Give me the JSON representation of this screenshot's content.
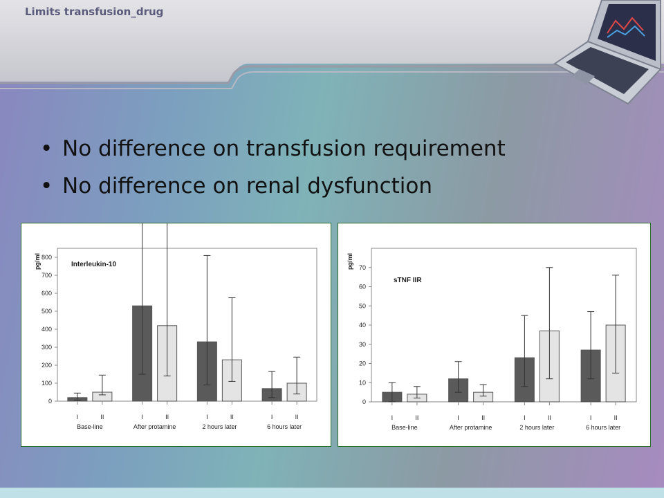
{
  "header": {
    "title": "Limits transfusion_drug"
  },
  "bullets": [
    "No difference on transfusion requirement",
    "No difference on renal dysfunction"
  ],
  "colors": {
    "series_I": "#5a5a5a",
    "series_II": "#e4e4e4",
    "panel_border": "#2b6b2b"
  },
  "decor": {
    "laptop": "laptop-icon"
  },
  "chart_data": [
    {
      "type": "bar",
      "title": "Interleukin-10",
      "ylabel": "pg/ml",
      "ylim": [
        0,
        850
      ],
      "yticks": [
        0,
        100,
        200,
        300,
        400,
        500,
        600,
        700,
        800
      ],
      "categories": [
        "Base-line",
        "After protamine",
        "2 hours later",
        "6 hours later"
      ],
      "series": [
        {
          "name": "I",
          "values": [
            20,
            530,
            330,
            70
          ],
          "err_low": [
            15,
            380,
            240,
            50
          ],
          "err_high": [
            25,
            730,
            480,
            95
          ]
        },
        {
          "name": "II",
          "values": [
            50,
            420,
            230,
            100
          ],
          "err_low": [
            15,
            280,
            120,
            60
          ],
          "err_high": [
            95,
            575,
            345,
            145
          ]
        }
      ],
      "grid": false,
      "legend": "none"
    },
    {
      "type": "bar",
      "title": "sTNF IIR",
      "ylabel": "pg/ml",
      "ylim": [
        0,
        80
      ],
      "yticks": [
        0,
        10,
        20,
        30,
        40,
        50,
        60,
        70
      ],
      "categories": [
        "Base-line",
        "After protamine",
        "2 hours later",
        "6 hours later"
      ],
      "series": [
        {
          "name": "I",
          "values": [
            5,
            12,
            23,
            27
          ],
          "err_low": [
            5,
            7,
            15,
            15
          ],
          "err_high": [
            5,
            9,
            22,
            20
          ]
        },
        {
          "name": "II",
          "values": [
            4,
            5,
            37,
            40
          ],
          "err_low": [
            2,
            2,
            25,
            25
          ],
          "err_high": [
            4,
            4,
            33,
            26
          ]
        }
      ],
      "grid": false,
      "legend": "none"
    }
  ]
}
